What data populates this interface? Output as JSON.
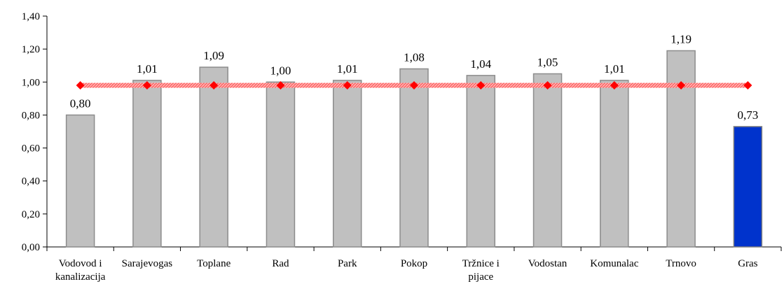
{
  "chart_data": {
    "type": "bar",
    "categories": [
      [
        "Vodovod i",
        "kanalizacija"
      ],
      [
        "Sarajevogas"
      ],
      [
        "Toplane"
      ],
      [
        "Rad"
      ],
      [
        "Park"
      ],
      [
        "Pokop"
      ],
      [
        "Tržnice i",
        "pijace"
      ],
      [
        "Vodostan"
      ],
      [
        "Komunalac"
      ],
      [
        "Trnovo"
      ],
      [
        "Gras"
      ]
    ],
    "values": [
      0.8,
      1.01,
      1.09,
      1.0,
      1.01,
      1.08,
      1.04,
      1.05,
      1.01,
      1.19,
      0.73
    ],
    "value_labels": [
      "0,80",
      "1,01",
      "1,09",
      "1,00",
      "1,01",
      "1,08",
      "1,04",
      "1,05",
      "1,01",
      "1,19",
      "0,73"
    ],
    "reference_line": {
      "value": 0.98,
      "color": "#ff0000"
    },
    "ylim": [
      0,
      1.4
    ],
    "yticks": [
      0,
      0.2,
      0.4,
      0.6,
      0.8,
      1.0,
      1.2,
      1.4
    ],
    "ytick_labels": [
      "0,00",
      "0,20",
      "0,40",
      "0,60",
      "0,80",
      "1,00",
      "1,20",
      "1,40"
    ],
    "grid": false,
    "colors": {
      "bar_default": "#c0c0c0",
      "bar_default_border": "#8c8c8c",
      "bar_highlight": "#0033cc",
      "bar_highlight_border": "#7f7f7f"
    },
    "highlight_index": 10
  }
}
